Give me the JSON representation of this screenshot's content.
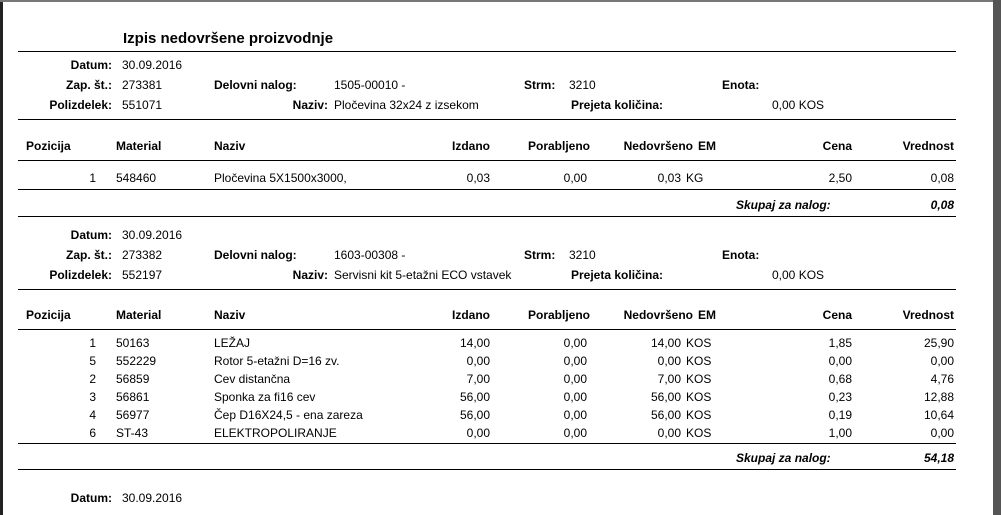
{
  "report": {
    "title": "Izpis nedovršene proizvodnje",
    "labels": {
      "datum": "Datum:",
      "zap_st": "Zap. št.:",
      "polizdelek": "Polizdelek:",
      "delovni_nalog": "Delovni nalog:",
      "naziv": "Naziv:",
      "strm": "Strm:",
      "enota": "Enota:",
      "prejeta": "Prejeta količina:"
    },
    "columns": [
      "Pozicija",
      "Material",
      "Naziv",
      "Izdano",
      "Porabljeno",
      "Nedovršeno",
      "EM",
      "Cena",
      "Vrednost"
    ],
    "total_label": "Skupaj za nalog:"
  },
  "orders": [
    {
      "datum": "30.09.2016",
      "zap_st": "273381",
      "polizdelek": "551071",
      "delovni_nalog": "1505-00010 -",
      "naziv": "Pločevina 32x24 z izsekom",
      "strm": "3210",
      "enota": "",
      "prejeta": "0,00 KOS",
      "rows": [
        {
          "pozicija": "1",
          "material": "548460",
          "naziv": "Pločevina 5X1500x3000,",
          "izdano": "0,03",
          "porabljeno": "0,00",
          "nedovrseno": "0,03",
          "em": "KG",
          "cena": "2,50",
          "vrednost": "0,08"
        }
      ],
      "total": "0,08"
    },
    {
      "datum": "30.09.2016",
      "zap_st": "273382",
      "polizdelek": "552197",
      "delovni_nalog": "1603-00308 -",
      "naziv": "Servisni kit 5-etažni ECO vstavek",
      "strm": "3210",
      "enota": "",
      "prejeta": "0,00 KOS",
      "rows": [
        {
          "pozicija": "1",
          "material": "50163",
          "naziv": "LEŽAJ",
          "izdano": "14,00",
          "porabljeno": "0,00",
          "nedovrseno": "14,00",
          "em": "KOS",
          "cena": "1,85",
          "vrednost": "25,90"
        },
        {
          "pozicija": "5",
          "material": "552229",
          "naziv": "Rotor 5-etažni D=16 zv.",
          "izdano": "0,00",
          "porabljeno": "0,00",
          "nedovrseno": "0,00",
          "em": "KOS",
          "cena": "0,00",
          "vrednost": "0,00"
        },
        {
          "pozicija": "2",
          "material": "56859",
          "naziv": "Cev distančna",
          "izdano": "7,00",
          "porabljeno": "0,00",
          "nedovrseno": "7,00",
          "em": "KOS",
          "cena": "0,68",
          "vrednost": "4,76"
        },
        {
          "pozicija": "3",
          "material": "56861",
          "naziv": "Sponka za fi16 cev",
          "izdano": "56,00",
          "porabljeno": "0,00",
          "nedovrseno": "56,00",
          "em": "KOS",
          "cena": "0,23",
          "vrednost": "12,88"
        },
        {
          "pozicija": "4",
          "material": "56977",
          "naziv": "Čep D16X24,5 - ena zareza",
          "izdano": "56,00",
          "porabljeno": "0,00",
          "nedovrseno": "56,00",
          "em": "KOS",
          "cena": "0,19",
          "vrednost": "10,64"
        },
        {
          "pozicija": "6",
          "material": "ST-43",
          "naziv": "ELEKTROPOLIRANJE",
          "izdano": "0,00",
          "porabljeno": "0,00",
          "nedovrseno": "0,00",
          "em": "KOS",
          "cena": "1,00",
          "vrednost": "0,00"
        }
      ],
      "total": "54,18"
    },
    {
      "datum": "30.09.2016"
    }
  ]
}
